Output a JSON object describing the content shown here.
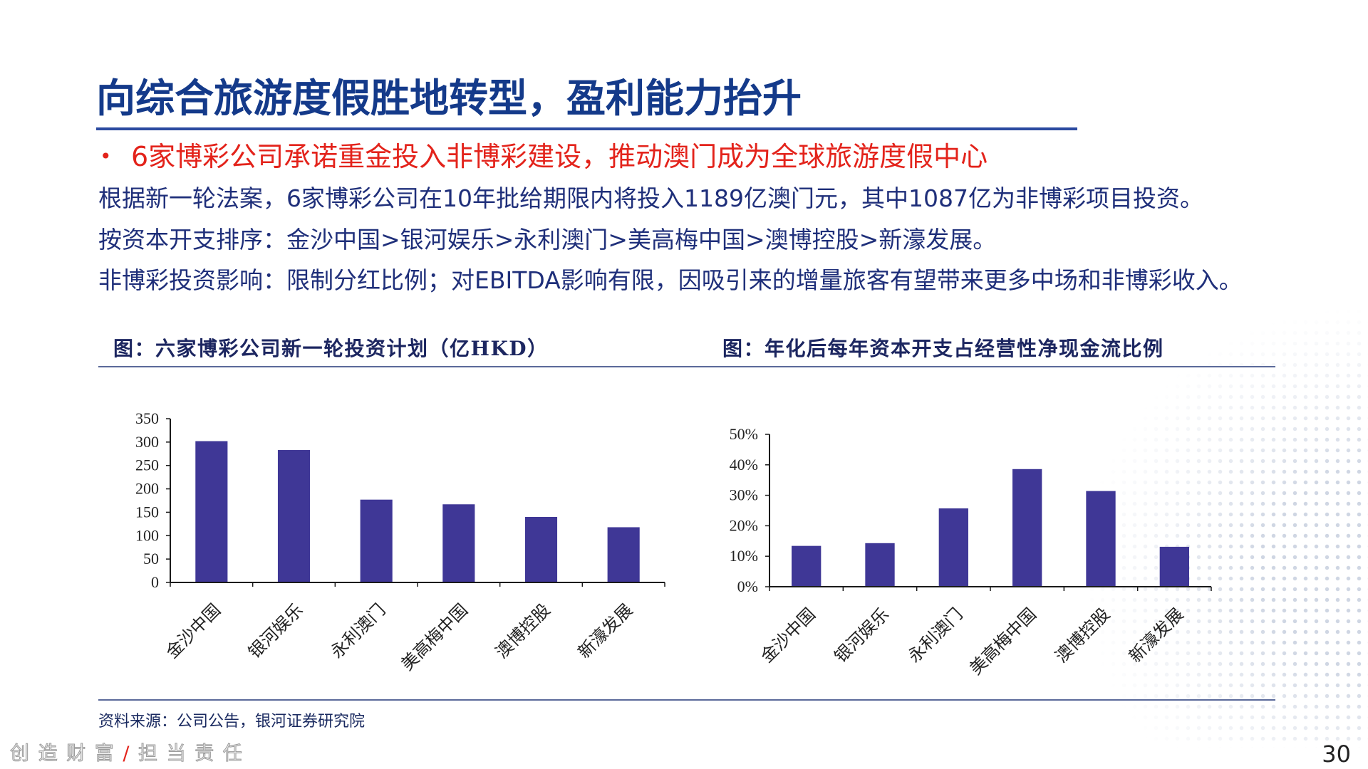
{
  "colors": {
    "title": "#143a8a",
    "title_rule": "#2b4aa0",
    "bullet": "#e3231b",
    "body_text": "#1f2f7a",
    "chart_title": "#1c2660",
    "divider": "#5b6a9a",
    "footer_separator": "#e3231b"
  },
  "slide": {
    "title": "向综合旅游度假胜地转型，盈利能力抬升",
    "bullet": {
      "marker": "•",
      "text": "6家博彩公司承诺重金投入非博彩建设，推动澳门成为全球旅游度假中心"
    },
    "body_lines": [
      "根据新一轮法案，6家博彩公司在10年批给期限内将投入1189亿澳门元，其中1087亿为非博彩项目投资。",
      "按资本开支排序：金沙中国>银河娱乐>永利澳门>美高梅中国>澳博控股>新濠发展。",
      "非博彩投资影响：限制分红比例；对EBITDA影响有限，因吸引来的增量旅客有望带来更多中场和非博彩收入。"
    ],
    "source": "资料来源：公司公告，银河证券研究院",
    "footer": {
      "slogan_left": "创 造 财 富",
      "separator": "/",
      "slogan_right": "担 当 责 任"
    },
    "page_number": "30"
  },
  "chart_data": [
    {
      "type": "bar",
      "title": "图：六家博彩公司新一轮投资计划（亿HKD）",
      "categories": [
        "金沙中国",
        "银河娱乐",
        "永利澳门",
        "美高梅中国",
        "澳博控股",
        "新濠发展"
      ],
      "values": [
        302,
        283,
        177,
        167,
        140,
        118
      ],
      "ylim": [
        0,
        350
      ],
      "yticks": [
        0,
        50,
        100,
        150,
        200,
        250,
        300,
        350
      ],
      "ytick_labels": [
        "0",
        "50",
        "100",
        "150",
        "200",
        "250",
        "300",
        "350"
      ],
      "grid": false,
      "bar_color": "#3f3796"
    },
    {
      "type": "bar",
      "title": "图：年化后每年资本开支占经营性净现金流比例",
      "categories": [
        "金沙中国",
        "银河娱乐",
        "永利澳门",
        "美高梅中国",
        "澳博控股",
        "新濠发展"
      ],
      "values": [
        13.4,
        14.3,
        25.7,
        38.6,
        31.4,
        13.1
      ],
      "ylim": [
        0,
        50
      ],
      "yticks": [
        0,
        10,
        20,
        30,
        40,
        50
      ],
      "ytick_labels": [
        "0%",
        "10%",
        "20%",
        "30%",
        "40%",
        "50%"
      ],
      "grid": false,
      "bar_color": "#3f3796"
    }
  ]
}
